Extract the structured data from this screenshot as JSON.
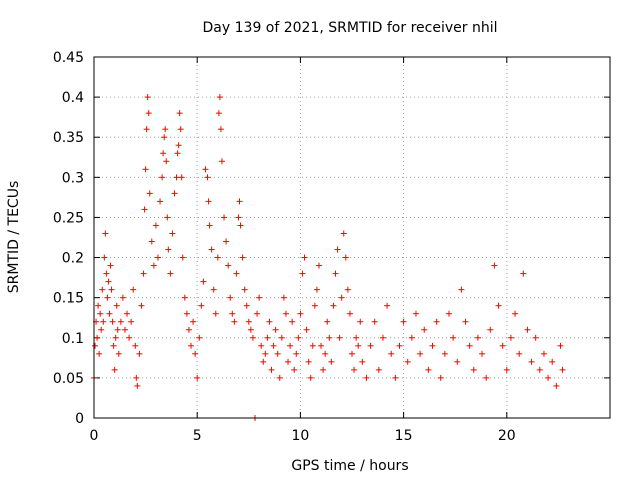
{
  "chart_data": {
    "type": "scatter",
    "title": "Day 139 of 2021, SRMTID for receiver nhil",
    "xlabel": "GPS time / hours",
    "ylabel": "SRMTID / TECUs",
    "xlim": [
      0,
      25
    ],
    "ylim": [
      0,
      0.45
    ],
    "xticks": [
      0,
      5,
      10,
      15,
      20
    ],
    "yticks": [
      0,
      0.05,
      0.1,
      0.15,
      0.2,
      0.25,
      0.3,
      0.35,
      0.4,
      0.45
    ],
    "xtick_labels": [
      "0",
      "5",
      "10",
      "15",
      "20"
    ],
    "ytick_labels": [
      "0",
      "0.05",
      "0.1",
      "0.15",
      "0.2",
      "0.25",
      "0.3",
      "0.35",
      "0.4",
      "0.45"
    ],
    "grid": true,
    "marker": "plus",
    "color": "#ff0000",
    "points": [
      [
        0.0,
        0.05
      ],
      [
        0.05,
        0.09
      ],
      [
        0.1,
        0.12
      ],
      [
        0.15,
        0.1
      ],
      [
        0.2,
        0.14
      ],
      [
        0.25,
        0.08
      ],
      [
        0.3,
        0.13
      ],
      [
        0.35,
        0.11
      ],
      [
        0.4,
        0.16
      ],
      [
        0.45,
        0.12
      ],
      [
        0.5,
        0.2
      ],
      [
        0.55,
        0.23
      ],
      [
        0.6,
        0.18
      ],
      [
        0.65,
        0.15
      ],
      [
        0.7,
        0.17
      ],
      [
        0.75,
        0.13
      ],
      [
        0.8,
        0.19
      ],
      [
        0.85,
        0.16
      ],
      [
        0.9,
        0.12
      ],
      [
        0.95,
        0.09
      ],
      [
        1.0,
        0.06
      ],
      [
        1.05,
        0.1
      ],
      [
        1.1,
        0.14
      ],
      [
        1.15,
        0.11
      ],
      [
        1.2,
        0.08
      ],
      [
        1.3,
        0.12
      ],
      [
        1.4,
        0.15
      ],
      [
        1.5,
        0.11
      ],
      [
        1.6,
        0.13
      ],
      [
        1.7,
        0.1
      ],
      [
        1.8,
        0.12
      ],
      [
        1.9,
        0.16
      ],
      [
        2.0,
        0.09
      ],
      [
        2.05,
        0.05
      ],
      [
        2.1,
        0.04
      ],
      [
        2.2,
        0.08
      ],
      [
        2.3,
        0.14
      ],
      [
        2.4,
        0.18
      ],
      [
        2.45,
        0.26
      ],
      [
        2.5,
        0.31
      ],
      [
        2.55,
        0.36
      ],
      [
        2.6,
        0.4
      ],
      [
        2.65,
        0.38
      ],
      [
        2.7,
        0.28
      ],
      [
        2.8,
        0.22
      ],
      [
        2.9,
        0.19
      ],
      [
        3.0,
        0.24
      ],
      [
        3.1,
        0.2
      ],
      [
        3.2,
        0.27
      ],
      [
        3.3,
        0.3
      ],
      [
        3.35,
        0.33
      ],
      [
        3.4,
        0.35
      ],
      [
        3.45,
        0.36
      ],
      [
        3.5,
        0.32
      ],
      [
        3.55,
        0.25
      ],
      [
        3.6,
        0.21
      ],
      [
        3.7,
        0.18
      ],
      [
        3.8,
        0.23
      ],
      [
        3.9,
        0.28
      ],
      [
        4.0,
        0.3
      ],
      [
        4.05,
        0.33
      ],
      [
        4.1,
        0.34
      ],
      [
        4.15,
        0.38
      ],
      [
        4.2,
        0.36
      ],
      [
        4.25,
        0.3
      ],
      [
        4.3,
        0.2
      ],
      [
        4.4,
        0.15
      ],
      [
        4.5,
        0.13
      ],
      [
        4.6,
        0.11
      ],
      [
        4.7,
        0.09
      ],
      [
        4.8,
        0.12
      ],
      [
        4.9,
        0.08
      ],
      [
        5.0,
        0.05
      ],
      [
        5.1,
        0.1
      ],
      [
        5.2,
        0.14
      ],
      [
        5.3,
        0.17
      ],
      [
        5.4,
        0.31
      ],
      [
        5.5,
        0.3
      ],
      [
        5.55,
        0.27
      ],
      [
        5.6,
        0.24
      ],
      [
        5.7,
        0.21
      ],
      [
        5.8,
        0.16
      ],
      [
        5.9,
        0.13
      ],
      [
        6.0,
        0.2
      ],
      [
        6.05,
        0.38
      ],
      [
        6.1,
        0.4
      ],
      [
        6.15,
        0.36
      ],
      [
        6.2,
        0.32
      ],
      [
        6.3,
        0.25
      ],
      [
        6.4,
        0.22
      ],
      [
        6.5,
        0.19
      ],
      [
        6.6,
        0.15
      ],
      [
        6.7,
        0.13
      ],
      [
        6.8,
        0.12
      ],
      [
        6.9,
        0.18
      ],
      [
        7.0,
        0.25
      ],
      [
        7.05,
        0.27
      ],
      [
        7.1,
        0.24
      ],
      [
        7.2,
        0.2
      ],
      [
        7.3,
        0.16
      ],
      [
        7.4,
        0.14
      ],
      [
        7.5,
        0.12
      ],
      [
        7.6,
        0.11
      ],
      [
        7.7,
        0.1
      ],
      [
        7.8,
        0.0
      ],
      [
        7.9,
        0.13
      ],
      [
        8.0,
        0.15
      ],
      [
        8.1,
        0.09
      ],
      [
        8.2,
        0.07
      ],
      [
        8.3,
        0.08
      ],
      [
        8.4,
        0.1
      ],
      [
        8.5,
        0.12
      ],
      [
        8.6,
        0.06
      ],
      [
        8.7,
        0.09
      ],
      [
        8.8,
        0.11
      ],
      [
        8.9,
        0.08
      ],
      [
        9.0,
        0.05
      ],
      [
        9.1,
        0.1
      ],
      [
        9.2,
        0.15
      ],
      [
        9.3,
        0.13
      ],
      [
        9.4,
        0.07
      ],
      [
        9.5,
        0.09
      ],
      [
        9.6,
        0.12
      ],
      [
        9.7,
        0.06
      ],
      [
        9.8,
        0.08
      ],
      [
        9.9,
        0.1
      ],
      [
        10.0,
        0.13
      ],
      [
        10.1,
        0.18
      ],
      [
        10.2,
        0.2
      ],
      [
        10.3,
        0.11
      ],
      [
        10.4,
        0.07
      ],
      [
        10.5,
        0.05
      ],
      [
        10.6,
        0.09
      ],
      [
        10.7,
        0.14
      ],
      [
        10.8,
        0.16
      ],
      [
        10.9,
        0.19
      ],
      [
        11.0,
        0.09
      ],
      [
        11.1,
        0.06
      ],
      [
        11.2,
        0.08
      ],
      [
        11.3,
        0.12
      ],
      [
        11.4,
        0.1
      ],
      [
        11.5,
        0.07
      ],
      [
        11.6,
        0.14
      ],
      [
        11.7,
        0.18
      ],
      [
        11.8,
        0.21
      ],
      [
        11.9,
        0.1
      ],
      [
        12.0,
        0.15
      ],
      [
        12.1,
        0.23
      ],
      [
        12.2,
        0.2
      ],
      [
        12.3,
        0.16
      ],
      [
        12.4,
        0.13
      ],
      [
        12.5,
        0.08
      ],
      [
        12.6,
        0.06
      ],
      [
        12.7,
        0.1
      ],
      [
        12.8,
        0.09
      ],
      [
        12.9,
        0.12
      ],
      [
        13.0,
        0.07
      ],
      [
        13.2,
        0.05
      ],
      [
        13.4,
        0.09
      ],
      [
        13.6,
        0.12
      ],
      [
        13.8,
        0.06
      ],
      [
        14.0,
        0.1
      ],
      [
        14.2,
        0.14
      ],
      [
        14.4,
        0.08
      ],
      [
        14.6,
        0.05
      ],
      [
        14.8,
        0.09
      ],
      [
        15.0,
        0.12
      ],
      [
        15.2,
        0.07
      ],
      [
        15.4,
        0.1
      ],
      [
        15.6,
        0.13
      ],
      [
        15.8,
        0.08
      ],
      [
        16.0,
        0.11
      ],
      [
        16.2,
        0.06
      ],
      [
        16.4,
        0.09
      ],
      [
        16.6,
        0.12
      ],
      [
        16.8,
        0.05
      ],
      [
        17.0,
        0.08
      ],
      [
        17.2,
        0.13
      ],
      [
        17.4,
        0.1
      ],
      [
        17.6,
        0.07
      ],
      [
        17.8,
        0.16
      ],
      [
        18.0,
        0.12
      ],
      [
        18.2,
        0.09
      ],
      [
        18.4,
        0.06
      ],
      [
        18.6,
        0.1
      ],
      [
        18.8,
        0.08
      ],
      [
        19.0,
        0.05
      ],
      [
        19.2,
        0.11
      ],
      [
        19.4,
        0.19
      ],
      [
        19.6,
        0.14
      ],
      [
        19.8,
        0.09
      ],
      [
        20.0,
        0.06
      ],
      [
        20.2,
        0.1
      ],
      [
        20.4,
        0.13
      ],
      [
        20.6,
        0.08
      ],
      [
        20.8,
        0.18
      ],
      [
        21.0,
        0.11
      ],
      [
        21.2,
        0.07
      ],
      [
        21.4,
        0.1
      ],
      [
        21.6,
        0.06
      ],
      [
        21.8,
        0.08
      ],
      [
        22.0,
        0.05
      ],
      [
        22.2,
        0.07
      ],
      [
        22.4,
        0.04
      ],
      [
        22.6,
        0.09
      ],
      [
        22.7,
        0.06
      ]
    ]
  }
}
